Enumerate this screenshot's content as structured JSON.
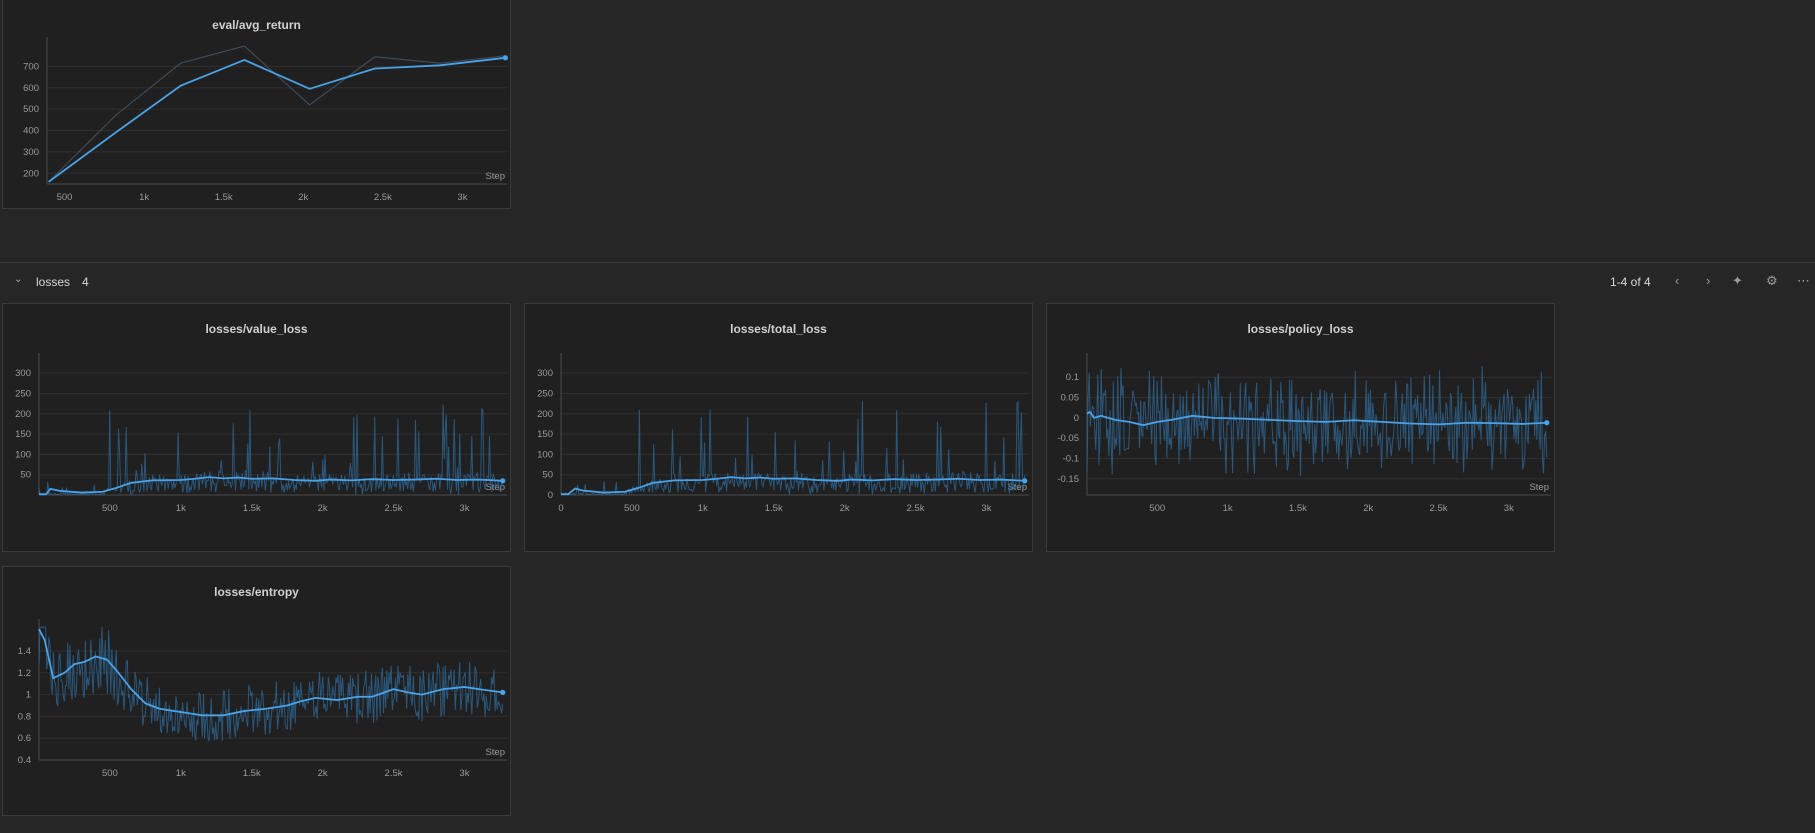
{
  "section": {
    "name": "losses",
    "count": "4",
    "pager": "1-4 of 4",
    "icons": [
      "chevron-left-icon",
      "chevron-right-icon",
      "sparkle-icon",
      "gear-icon",
      "more-icon"
    ]
  },
  "colors": {
    "accent": "#4aa3e8",
    "raw": "#2f6a9a",
    "grid": "#2e2e2e",
    "axis": "#4a4a4a"
  },
  "chart_data": [
    {
      "id": "eval",
      "type": "line",
      "title": "eval/avg_return",
      "xlabel": "Step",
      "xlim": [
        390,
        3280
      ],
      "ylim": [
        150,
        800
      ],
      "xticks": [
        500,
        1000,
        1500,
        2000,
        2500,
        3000
      ],
      "xtick_labels": [
        "500",
        "1k",
        "1.5k",
        "2k",
        "2.5k",
        "3k"
      ],
      "yticks": [
        200,
        300,
        400,
        500,
        600,
        700
      ],
      "ytick_labels": [
        "200",
        "300",
        "400",
        "500",
        "600",
        "700"
      ],
      "series": [
        {
          "name": "raw",
          "x": [
            400,
            820,
            1230,
            1630,
            2040,
            2450,
            2860,
            3270
          ],
          "y": [
            160,
            470,
            715,
            795,
            520,
            745,
            715,
            750
          ]
        },
        {
          "name": "smoothed",
          "x": [
            400,
            820,
            1230,
            1630,
            2040,
            2450,
            2860,
            3270
          ],
          "y": [
            160,
            390,
            610,
            730,
            595,
            690,
            705,
            740
          ]
        }
      ]
    },
    {
      "id": "value_loss",
      "type": "line",
      "title": "losses/value_loss",
      "xlabel": "Step",
      "xlim": [
        0,
        3300
      ],
      "ylim": [
        0,
        330
      ],
      "xticks": [
        500,
        1000,
        1500,
        2000,
        2500,
        3000
      ],
      "xtick_labels": [
        "500",
        "1k",
        "1.5k",
        "2k",
        "2.5k",
        "3k"
      ],
      "yticks": [
        50,
        100,
        150,
        200,
        250,
        300
      ],
      "ytick_labels": [
        "50",
        "100",
        "150",
        "200",
        "250",
        "300"
      ],
      "series": [
        {
          "name": "smoothed",
          "x": [
            0,
            50,
            80,
            150,
            300,
            450,
            550,
            650,
            800,
            1000,
            1100,
            1200,
            1300,
            1400,
            1500,
            1650,
            1800,
            1950,
            2050,
            2200,
            2350,
            2500,
            2650,
            2800,
            2950,
            3100,
            3270
          ],
          "y": [
            2,
            2,
            15,
            10,
            6,
            8,
            18,
            30,
            36,
            37,
            40,
            44,
            41,
            43,
            40,
            41,
            37,
            35,
            38,
            36,
            39,
            37,
            38,
            40,
            37,
            38,
            35
          ]
        }
      ]
    },
    {
      "id": "total_loss",
      "type": "line",
      "title": "losses/total_loss",
      "xlabel": "Step",
      "xlim": [
        0,
        3300
      ],
      "ylim": [
        0,
        330
      ],
      "xticks": [
        0,
        500,
        1000,
        1500,
        2000,
        2500,
        3000
      ],
      "xtick_labels": [
        "0",
        "500",
        "1k",
        "1.5k",
        "2k",
        "2.5k",
        "3k"
      ],
      "yticks": [
        0,
        50,
        100,
        150,
        200,
        250,
        300
      ],
      "ytick_labels": [
        "0",
        "50",
        "100",
        "150",
        "200",
        "250",
        "300"
      ],
      "series": [
        {
          "name": "smoothed",
          "x": [
            0,
            50,
            100,
            150,
            300,
            450,
            550,
            650,
            800,
            1000,
            1100,
            1200,
            1300,
            1400,
            1500,
            1650,
            1800,
            1950,
            2050,
            2200,
            2350,
            2500,
            2650,
            2800,
            2950,
            3100,
            3270
          ],
          "y": [
            2,
            2,
            16,
            11,
            6,
            8,
            18,
            30,
            36,
            37,
            40,
            44,
            41,
            43,
            40,
            41,
            37,
            35,
            38,
            36,
            39,
            37,
            38,
            40,
            37,
            38,
            35
          ]
        }
      ]
    },
    {
      "id": "policy_loss",
      "type": "line",
      "title": "losses/policy_loss",
      "xlabel": "Step",
      "xlim": [
        0,
        3300
      ],
      "ylim": [
        -0.19,
        0.14
      ],
      "xticks": [
        500,
        1000,
        1500,
        2000,
        2500,
        3000
      ],
      "xtick_labels": [
        "500",
        "1k",
        "1.5k",
        "2k",
        "2.5k",
        "3k"
      ],
      "yticks": [
        -0.15,
        -0.1,
        -0.05,
        0,
        0.05,
        0.1
      ],
      "ytick_labels": [
        "-0.15",
        "-0.1",
        "-0.05",
        "0",
        "0.05",
        "0.1"
      ],
      "series": [
        {
          "name": "smoothed",
          "x": [
            0,
            20,
            50,
            100,
            200,
            300,
            400,
            500,
            600,
            750,
            900,
            1100,
            1300,
            1500,
            1700,
            1900,
            2100,
            2300,
            2500,
            2700,
            2900,
            3100,
            3270
          ],
          "y": [
            0.01,
            0.015,
            0.0,
            0.005,
            -0.005,
            -0.01,
            -0.018,
            -0.01,
            -0.005,
            0.005,
            0.0,
            -0.002,
            -0.005,
            -0.008,
            -0.01,
            -0.006,
            -0.01,
            -0.014,
            -0.016,
            -0.012,
            -0.013,
            -0.015,
            -0.012
          ]
        }
      ]
    },
    {
      "id": "entropy",
      "type": "line",
      "title": "losses/entropy",
      "xlabel": "Step",
      "xlim": [
        0,
        3300
      ],
      "ylim": [
        0.4,
        1.62
      ],
      "xticks": [
        500,
        1000,
        1500,
        2000,
        2500,
        3000
      ],
      "xtick_labels": [
        "500",
        "1k",
        "1.5k",
        "2k",
        "2.5k",
        "3k"
      ],
      "yticks": [
        0.4,
        0.6,
        0.8,
        1.0,
        1.2,
        1.4
      ],
      "ytick_labels": [
        "0.4",
        "0.6",
        "0.8",
        "1",
        "1.2",
        "1.4"
      ],
      "series": [
        {
          "name": "smoothed",
          "x": [
            0,
            40,
            100,
            180,
            250,
            320,
            400,
            480,
            560,
            650,
            750,
            850,
            950,
            1050,
            1150,
            1300,
            1450,
            1600,
            1750,
            1850,
            1950,
            2100,
            2250,
            2350,
            2500,
            2600,
            2700,
            2850,
            3000,
            3100,
            3270
          ],
          "y": [
            1.6,
            1.5,
            1.15,
            1.2,
            1.28,
            1.3,
            1.35,
            1.32,
            1.2,
            1.05,
            0.92,
            0.87,
            0.85,
            0.83,
            0.81,
            0.81,
            0.85,
            0.87,
            0.9,
            0.94,
            0.97,
            0.95,
            0.98,
            0.98,
            1.05,
            1.02,
            1.0,
            1.05,
            1.07,
            1.05,
            1.02
          ]
        }
      ]
    }
  ]
}
